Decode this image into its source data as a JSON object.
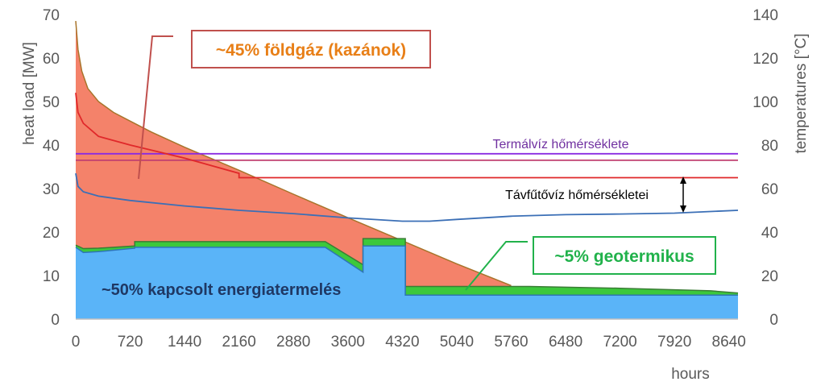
{
  "chart_data": {
    "type": "area",
    "xlabel": "hours",
    "ylabel_left": "heat load [MW]",
    "ylabel_right": "temperatures [°C]",
    "x_range": [
      0,
      8760
    ],
    "x_ticks": [
      0,
      720,
      1440,
      2160,
      2880,
      3600,
      4320,
      5040,
      5760,
      6480,
      7200,
      7920,
      8640
    ],
    "ylim_left": [
      0,
      70
    ],
    "y_ticks_left": [
      0,
      10,
      20,
      30,
      40,
      50,
      60,
      70
    ],
    "ylim_right": [
      0,
      140
    ],
    "y_ticks_right": [
      0,
      20,
      40,
      60,
      80,
      100,
      120,
      140
    ],
    "grid": false,
    "series": [
      {
        "color": "#f4826a",
        "axis": "left",
        "kind": "area",
        "x": [
          0,
          30,
          80,
          160,
          300,
          500,
          720,
          1000,
          1440,
          2160,
          2880,
          3600,
          4320,
          5040,
          5760
        ],
        "y": [
          68.5,
          62,
          57,
          53,
          50,
          47.5,
          45.5,
          43,
          39.5,
          34.2,
          28.7,
          23.3,
          18,
          12.7,
          7.7
        ]
      },
      {
        "color": "#3cc83c",
        "axis": "left",
        "kind": "area",
        "x": [
          0,
          100,
          300,
          780,
          780,
          3300,
          3800,
          3800,
          4360,
          4360,
          6000,
          7200,
          8400,
          8760
        ],
        "y": [
          17,
          16.2,
          16.3,
          16.8,
          17.8,
          17.8,
          12.5,
          18.5,
          18.5,
          7.5,
          7.5,
          7.1,
          6.5,
          6
        ]
      },
      {
        "color": "#5ab4f8",
        "axis": "left",
        "kind": "area",
        "x": [
          0,
          100,
          300,
          780,
          780,
          3300,
          3800,
          3800,
          4360,
          4360,
          6000,
          7200,
          8400,
          8760
        ],
        "y": [
          16.5,
          15.3,
          15.5,
          16.3,
          16.5,
          16.5,
          10.8,
          16.8,
          16.8,
          5.5,
          5.5,
          5.5,
          5.5,
          5.5
        ]
      },
      {
        "color": "#8a2be2",
        "axis": "right",
        "kind": "line",
        "x": [
          0,
          8760
        ],
        "y": [
          76,
          76
        ]
      },
      {
        "color": "#c04070",
        "axis": "right",
        "kind": "line",
        "x": [
          0,
          8760
        ],
        "y": [
          73,
          73
        ]
      },
      {
        "color": "#e0282a",
        "axis": "right",
        "kind": "line",
        "x": [
          0,
          30,
          100,
          300,
          720,
          1440,
          2160,
          2160,
          8760
        ],
        "y": [
          104,
          95,
          90,
          84,
          80,
          74,
          67,
          65,
          65
        ]
      },
      {
        "color": "#3b6fb6",
        "axis": "right",
        "kind": "line",
        "x": [
          0,
          30,
          100,
          300,
          720,
          1440,
          2160,
          2880,
          3600,
          4320,
          4680,
          5040,
          5760,
          6480,
          7200,
          7920,
          8760
        ],
        "y": [
          67,
          61,
          58.5,
          56.5,
          54.5,
          52,
          50,
          48.5,
          46.5,
          45,
          45,
          45.8,
          47.3,
          48,
          48.3,
          48.7,
          50
        ]
      }
    ],
    "annotations": [
      {
        "text": "~45% földgáz (kazánok)",
        "color": "#e87f17",
        "box_color": "#c0504d"
      },
      {
        "text": "~5% geotermikus",
        "color": "#21b24b",
        "box_color": "#21b24b"
      },
      {
        "text": "~50% kapcsolt energiatermelés",
        "color": "#1f3864"
      },
      {
        "text": "Termálvíz hőmérséklete",
        "color": "#7030a0"
      },
      {
        "text": "Távfűtővíz hőmérsékletei",
        "color": "#000000"
      }
    ]
  }
}
